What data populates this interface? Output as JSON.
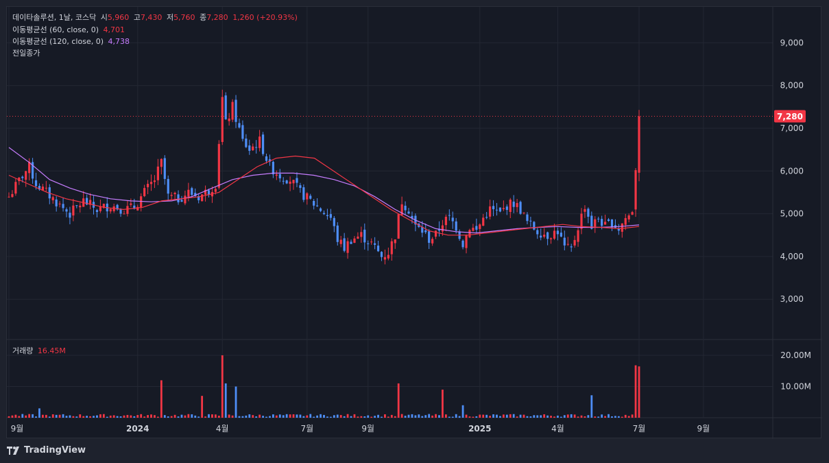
{
  "legend": {
    "symbol": "데이타솔루션, 1날, 코스닥",
    "open_label": "시",
    "open": "5,960",
    "high_label": "고",
    "high": "7,430",
    "low_label": "저",
    "low": "5,760",
    "close_label": "종",
    "close": "7,280",
    "change": "1,260 (+20.93%)",
    "ma60_label": "이동평균선 (60, close, 0)",
    "ma60_value": "4,701",
    "ma120_label": "이동평균선 (120, close, 0)",
    "ma120_value": "4,738",
    "prev_close_label": "전일종가",
    "volume_label": "거래량",
    "volume_value": "16.45M"
  },
  "branding": {
    "logo_text": "TradingView"
  },
  "colors": {
    "background": "#161a25",
    "grid": "#232733",
    "text": "#d1d4dc",
    "up": "#f23645",
    "down": "#2962ff",
    "down_candle": "#4e8ef7",
    "ma60": "#f23645",
    "ma120": "#c77dff",
    "price_tag": "#f23645"
  },
  "chart_data": {
    "type": "candlestick",
    "price_axis": {
      "ticks": [
        3000,
        4000,
        5000,
        6000,
        7000,
        8000,
        9000
      ],
      "tick_labels": [
        "3,000",
        "4,000",
        "5,000",
        "6,000",
        "7,000",
        "8,000",
        "9,000"
      ],
      "range": [
        2000,
        10000
      ]
    },
    "last_price": 7280,
    "last_price_label": "7,280",
    "volume_axis": {
      "ticks": [
        10000000,
        20000000
      ],
      "tick_labels": [
        "10.00M",
        "20.00M"
      ],
      "range": [
        0,
        22000000
      ]
    },
    "time_axis": {
      "labels": [
        "9월",
        "2024",
        "4월",
        "7월",
        "9월",
        "2025",
        "4월",
        "7월",
        "9월"
      ],
      "label_bold": [
        false,
        true,
        false,
        false,
        false,
        true,
        false,
        false,
        false
      ],
      "label_index": [
        0,
        38,
        63,
        88,
        106,
        139,
        162,
        186,
        205
      ]
    },
    "anchors": [
      [
        0,
        5400
      ],
      [
        4,
        5900
      ],
      [
        6,
        6100
      ],
      [
        8,
        5700
      ],
      [
        11,
        5500
      ],
      [
        15,
        5200
      ],
      [
        18,
        5000
      ],
      [
        22,
        5300
      ],
      [
        26,
        5100
      ],
      [
        30,
        5200
      ],
      [
        34,
        5100
      ],
      [
        37,
        5150
      ],
      [
        40,
        5500
      ],
      [
        43,
        5800
      ],
      [
        45,
        6200
      ],
      [
        47,
        5400
      ],
      [
        50,
        5350
      ],
      [
        53,
        5500
      ],
      [
        56,
        5400
      ],
      [
        59,
        5550
      ],
      [
        61,
        5700
      ],
      [
        63,
        7700
      ],
      [
        64,
        7100
      ],
      [
        66,
        7500
      ],
      [
        69,
        6700
      ],
      [
        71,
        6500
      ],
      [
        74,
        6700
      ],
      [
        77,
        6100
      ],
      [
        80,
        5900
      ],
      [
        83,
        5800
      ],
      [
        86,
        5500
      ],
      [
        89,
        5300
      ],
      [
        92,
        5100
      ],
      [
        95,
        4900
      ],
      [
        97,
        4400
      ],
      [
        99,
        4200
      ],
      [
        101,
        4400
      ],
      [
        104,
        4500
      ],
      [
        107,
        4300
      ],
      [
        110,
        4000
      ],
      [
        112,
        4100
      ],
      [
        114,
        4500
      ],
      [
        116,
        5300
      ],
      [
        118,
        5100
      ],
      [
        120,
        4700
      ],
      [
        122,
        4600
      ],
      [
        124,
        4400
      ],
      [
        126,
        4500
      ],
      [
        128,
        4800
      ],
      [
        130,
        4900
      ],
      [
        132,
        4700
      ],
      [
        134,
        4300
      ],
      [
        136,
        4700
      ],
      [
        138,
        4600
      ],
      [
        140,
        4900
      ],
      [
        142,
        5100
      ],
      [
        145,
        5000
      ],
      [
        147,
        5200
      ],
      [
        149,
        5250
      ],
      [
        151,
        5100
      ],
      [
        153,
        4800
      ],
      [
        156,
        4600
      ],
      [
        159,
        4500
      ],
      [
        162,
        4600
      ],
      [
        164,
        4200
      ],
      [
        166,
        4150
      ],
      [
        168,
        4700
      ],
      [
        170,
        5200
      ],
      [
        172,
        4700
      ],
      [
        174,
        4900
      ],
      [
        176,
        4700
      ],
      [
        178,
        4800
      ],
      [
        180,
        4650
      ],
      [
        182,
        4900
      ],
      [
        183,
        4950
      ],
      [
        184,
        5100
      ],
      [
        185,
        6500
      ],
      [
        186,
        7280
      ]
    ],
    "candle_count": 187,
    "last_candle": {
      "open": 5960,
      "high": 7430,
      "low": 5760,
      "close": 7280,
      "volume": 16450000
    },
    "volume_spikes": [
      [
        9,
        3000000
      ],
      [
        45,
        12000000
      ],
      [
        57,
        7000000
      ],
      [
        63,
        20000000
      ],
      [
        64,
        11000000
      ],
      [
        67,
        10000000
      ],
      [
        115,
        11000000
      ],
      [
        128,
        9000000
      ],
      [
        134,
        4000000
      ],
      [
        172,
        7200000
      ],
      [
        185,
        16800000
      ],
      [
        186,
        16450000
      ]
    ],
    "ma60": [
      5900,
      5700,
      5500,
      5350,
      5250,
      5150,
      5100,
      5150,
      5300,
      5350,
      5400,
      5500,
      5800,
      6100,
      6300,
      6350,
      6300,
      6000,
      5700,
      5400,
      5100,
      4850,
      4600,
      4500,
      4500,
      4550,
      4600,
      4650,
      4700,
      4750,
      4700,
      4680,
      4650,
      4701
    ],
    "ma120": [
      6550,
      6200,
      5800,
      5600,
      5450,
      5350,
      5300,
      5280,
      5300,
      5400,
      5600,
      5800,
      5900,
      5950,
      5950,
      5900,
      5800,
      5650,
      5400,
      5100,
      4850,
      4650,
      4580,
      4550,
      4600,
      4650,
      4680,
      4700,
      4680,
      4680,
      4700,
      4738
    ]
  }
}
